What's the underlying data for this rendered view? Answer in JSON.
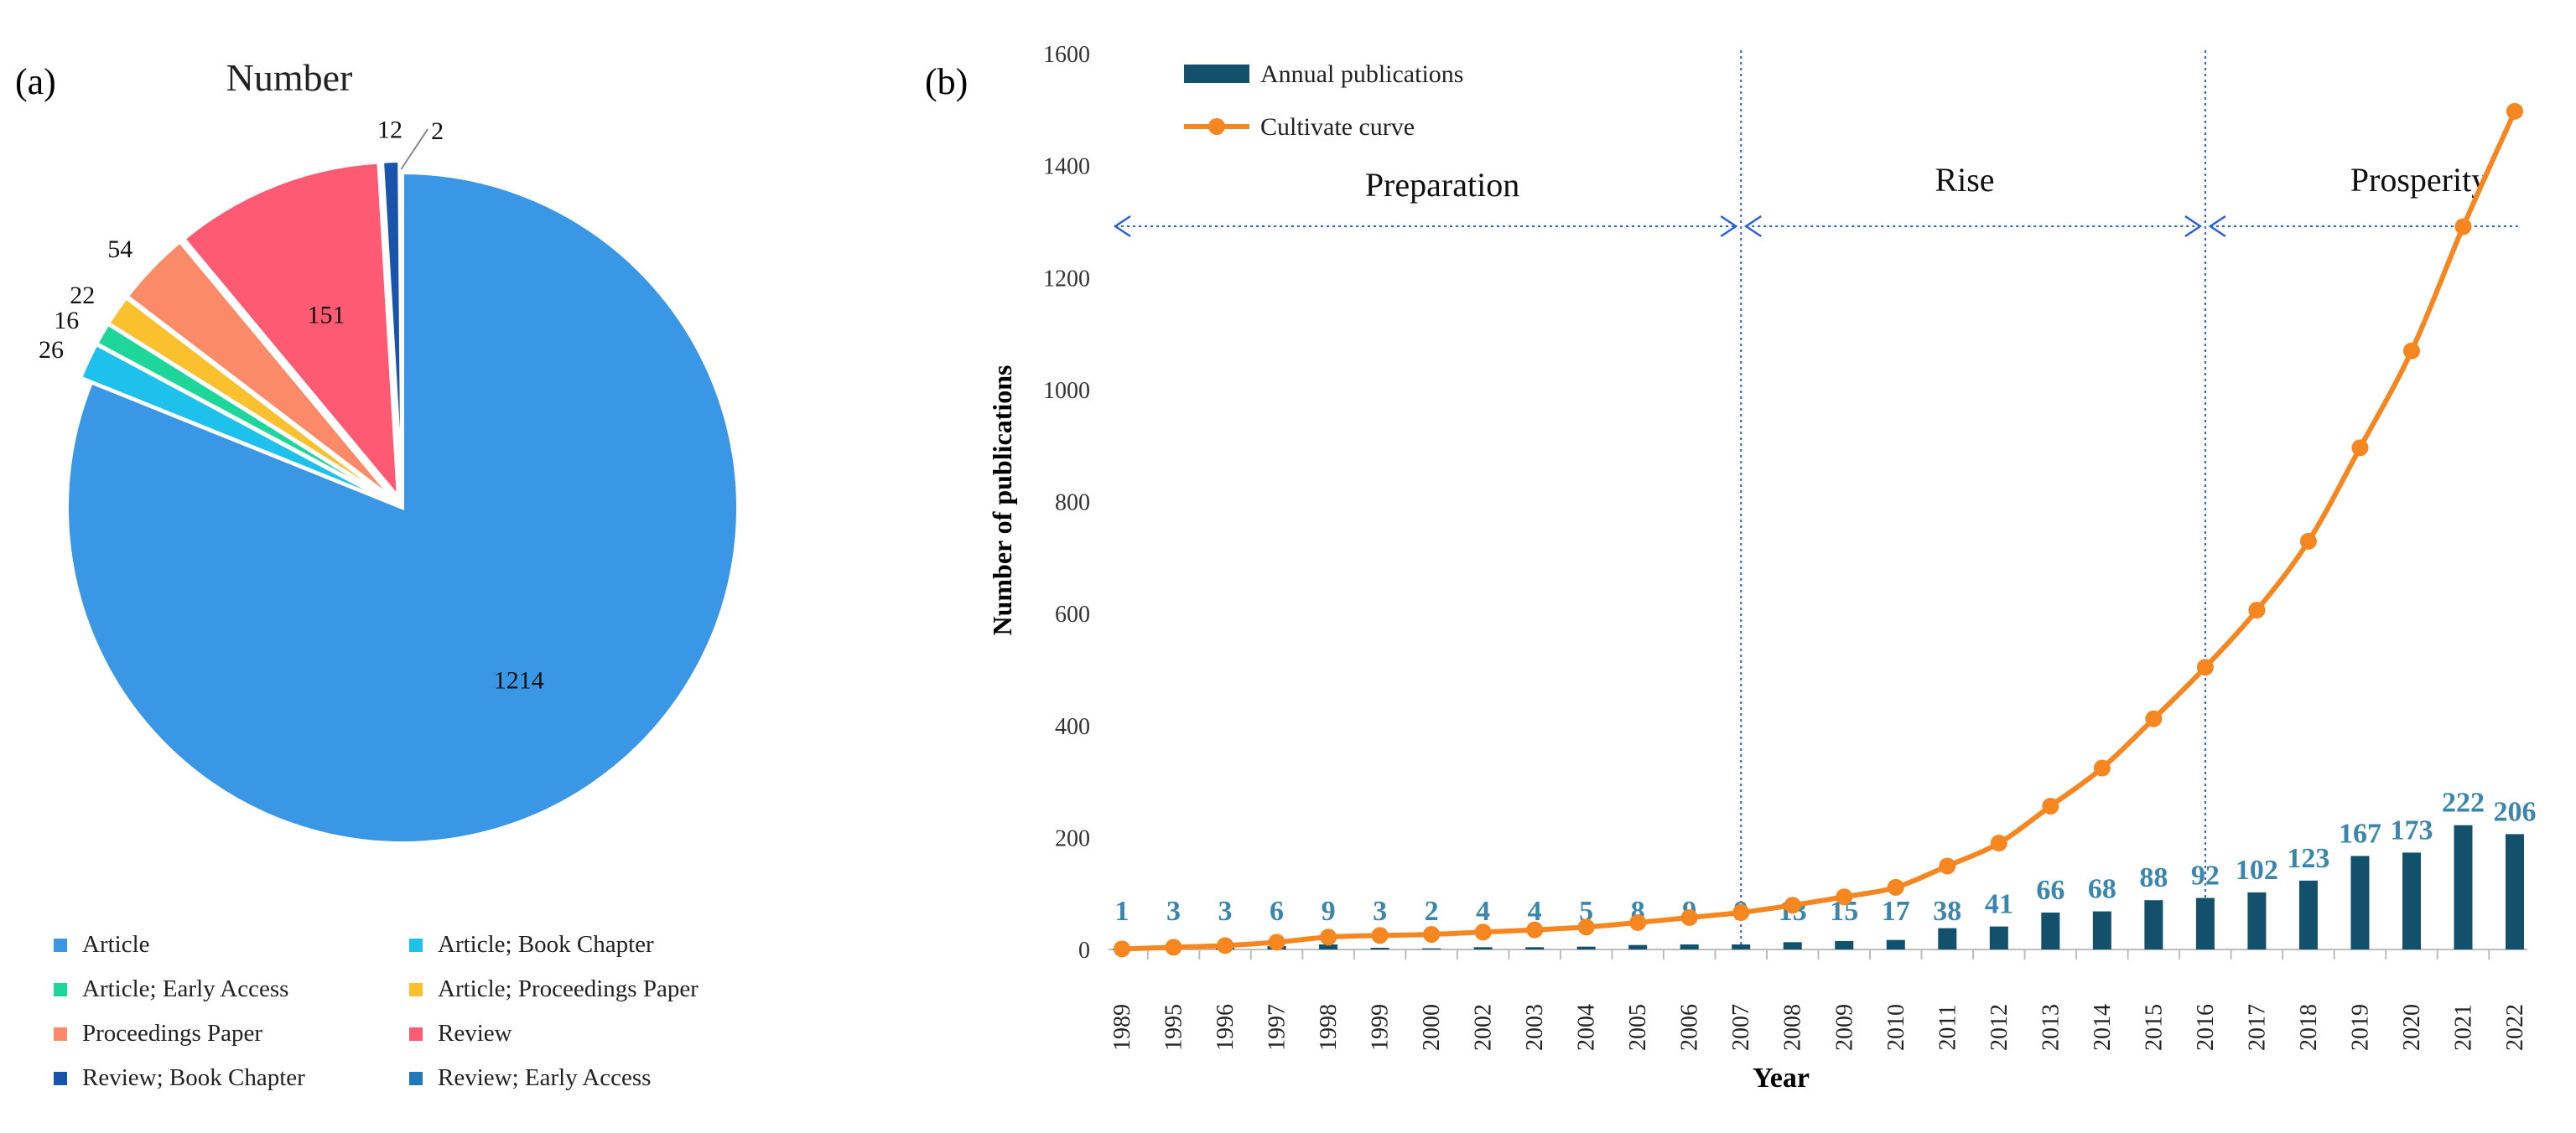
{
  "chart_data": [
    {
      "type": "pie",
      "panel_label": "(a)",
      "title": "Number",
      "slices": [
        {
          "name": "Article",
          "value": 1214,
          "color": "#3a97e6"
        },
        {
          "name": "Article; Book Chapter",
          "value": 26,
          "color": "#1ec0ec"
        },
        {
          "name": "Article; Early Access",
          "value": 16,
          "color": "#1ed69a"
        },
        {
          "name": "Article; Proceedings Paper",
          "value": 22,
          "color": "#fbc02d"
        },
        {
          "name": "Proceedings Paper",
          "value": 54,
          "color": "#fa8a68"
        },
        {
          "name": "Review",
          "value": 151,
          "color": "#fe5a73"
        },
        {
          "name": "Review; Book Chapter",
          "value": 12,
          "color": "#1854ab"
        },
        {
          "name": "Review; Early Access",
          "value": 2,
          "color": "#2079b4"
        }
      ],
      "legend": [
        "Article",
        "Article; Book Chapter",
        "Article; Early Access",
        "Article; Proceedings Paper",
        "Proceedings Paper",
        "Review",
        "Review; Book Chapter",
        "Review; Early Access"
      ]
    },
    {
      "type": "bar+line",
      "panel_label": "(b)",
      "categories": [
        "1989",
        "1995",
        "1996",
        "1997",
        "1998",
        "1999",
        "2000",
        "2002",
        "2003",
        "2004",
        "2005",
        "2006",
        "2007",
        "2008",
        "2009",
        "2010",
        "2011",
        "2012",
        "2013",
        "2014",
        "2015",
        "2016",
        "2017",
        "2018",
        "2019",
        "2020",
        "2021",
        "2022"
      ],
      "series": [
        {
          "name": "Annual publications",
          "kind": "bar",
          "color": "#13506c",
          "values": [
            1,
            3,
            3,
            6,
            9,
            3,
            2,
            4,
            4,
            5,
            8,
            9,
            9,
            13,
            15,
            17,
            38,
            41,
            66,
            68,
            88,
            92,
            102,
            123,
            167,
            173,
            222,
            206
          ]
        },
        {
          "name": "Cultivate curve",
          "kind": "line",
          "color": "#f68620",
          "values": [
            1,
            4,
            7,
            13,
            22,
            25,
            27,
            31,
            35,
            40,
            48,
            57,
            66,
            79,
            94,
            111,
            149,
            190,
            256,
            324,
            412,
            504,
            606,
            729,
            896,
            1069,
            1291,
            1497
          ]
        }
      ],
      "xlabel": "Year",
      "ylabel": "Number of publications",
      "ylim": [
        0,
        1600
      ],
      "yticks": [
        0,
        200,
        400,
        600,
        800,
        1000,
        1200,
        1400,
        1600
      ],
      "bar_label_color": "#3a86ad",
      "phases": [
        {
          "label": "Preparation",
          "from": "1989",
          "to": "2007"
        },
        {
          "label": "Rise",
          "from": "2007",
          "to": "2016"
        },
        {
          "label": "Prosperity",
          "from": "2016",
          "to": "2022"
        }
      ],
      "phase_line_color": "#2b5fd6"
    }
  ]
}
